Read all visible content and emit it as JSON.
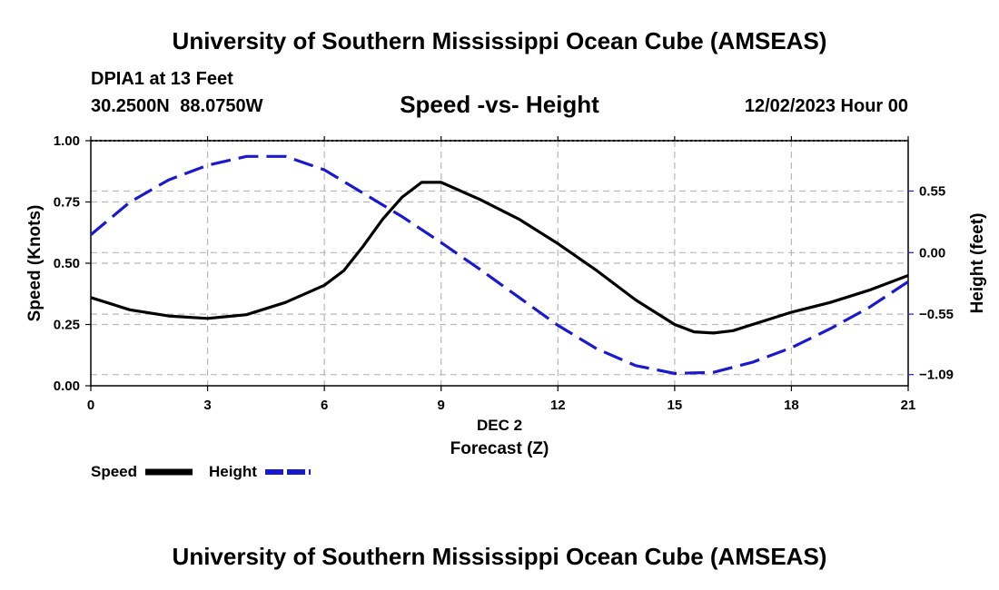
{
  "title": "University of Southern Mississippi Ocean Cube (AMSEAS)",
  "footer_title": "University of Southern Mississippi Ocean Cube (AMSEAS)",
  "station": "DPIA1 at 13 Feet",
  "coords": "30.2500N  88.0750W",
  "subtitle": "Speed -vs- Height",
  "datetime": "12/02/2023 Hour 00",
  "chart_data": {
    "type": "line",
    "title": "Speed -vs- Height",
    "xlabel_date": "DEC 2",
    "xlabel": "Forecast (Z)",
    "ylabel_left": "Speed (Knots)",
    "ylabel_right": "Height (feet)",
    "x_ticks": [
      "0",
      "3",
      "6",
      "9",
      "12",
      "15",
      "18",
      "21"
    ],
    "xlim": [
      0,
      21
    ],
    "y_left_ticks": [
      "0.00",
      "0.25",
      "0.50",
      "0.75",
      "1.00"
    ],
    "ylim_left": [
      0,
      1
    ],
    "y_right_ticks": [
      "0.55",
      "0.00",
      "−0.55",
      "−1.09"
    ],
    "y_right_tick_values": [
      0.55,
      0.0,
      -0.55,
      -1.09
    ],
    "ylim_right": [
      -1.19,
      1.0
    ],
    "grid": true,
    "legend_position": "bottom-left",
    "series": [
      {
        "name": "Speed",
        "axis": "left",
        "color": "#000000",
        "style": "solid",
        "x": [
          0,
          1,
          2,
          3,
          4,
          5,
          6,
          6.5,
          7,
          7.5,
          8,
          8.5,
          9,
          10,
          11,
          12,
          13,
          14,
          15,
          15.5,
          16,
          16.5,
          17,
          18,
          19,
          20,
          21
        ],
        "values": [
          0.36,
          0.31,
          0.285,
          0.275,
          0.29,
          0.34,
          0.41,
          0.47,
          0.57,
          0.68,
          0.77,
          0.83,
          0.83,
          0.76,
          0.68,
          0.58,
          0.47,
          0.35,
          0.25,
          0.22,
          0.215,
          0.225,
          0.25,
          0.3,
          0.34,
          0.39,
          0.45
        ]
      },
      {
        "name": "Height",
        "axis": "right",
        "color": "#1a1acc",
        "style": "dashed",
        "x": [
          0,
          1,
          2,
          3,
          4,
          5,
          6,
          7,
          8,
          9,
          10,
          11,
          12,
          13,
          14,
          15,
          16,
          17,
          18,
          19,
          20,
          21
        ],
        "values": [
          0.16,
          0.45,
          0.65,
          0.78,
          0.86,
          0.86,
          0.74,
          0.53,
          0.32,
          0.09,
          -0.15,
          -0.4,
          -0.65,
          -0.86,
          -1.01,
          -1.08,
          -1.07,
          -0.98,
          -0.85,
          -0.68,
          -0.49,
          -0.26
        ]
      }
    ]
  }
}
